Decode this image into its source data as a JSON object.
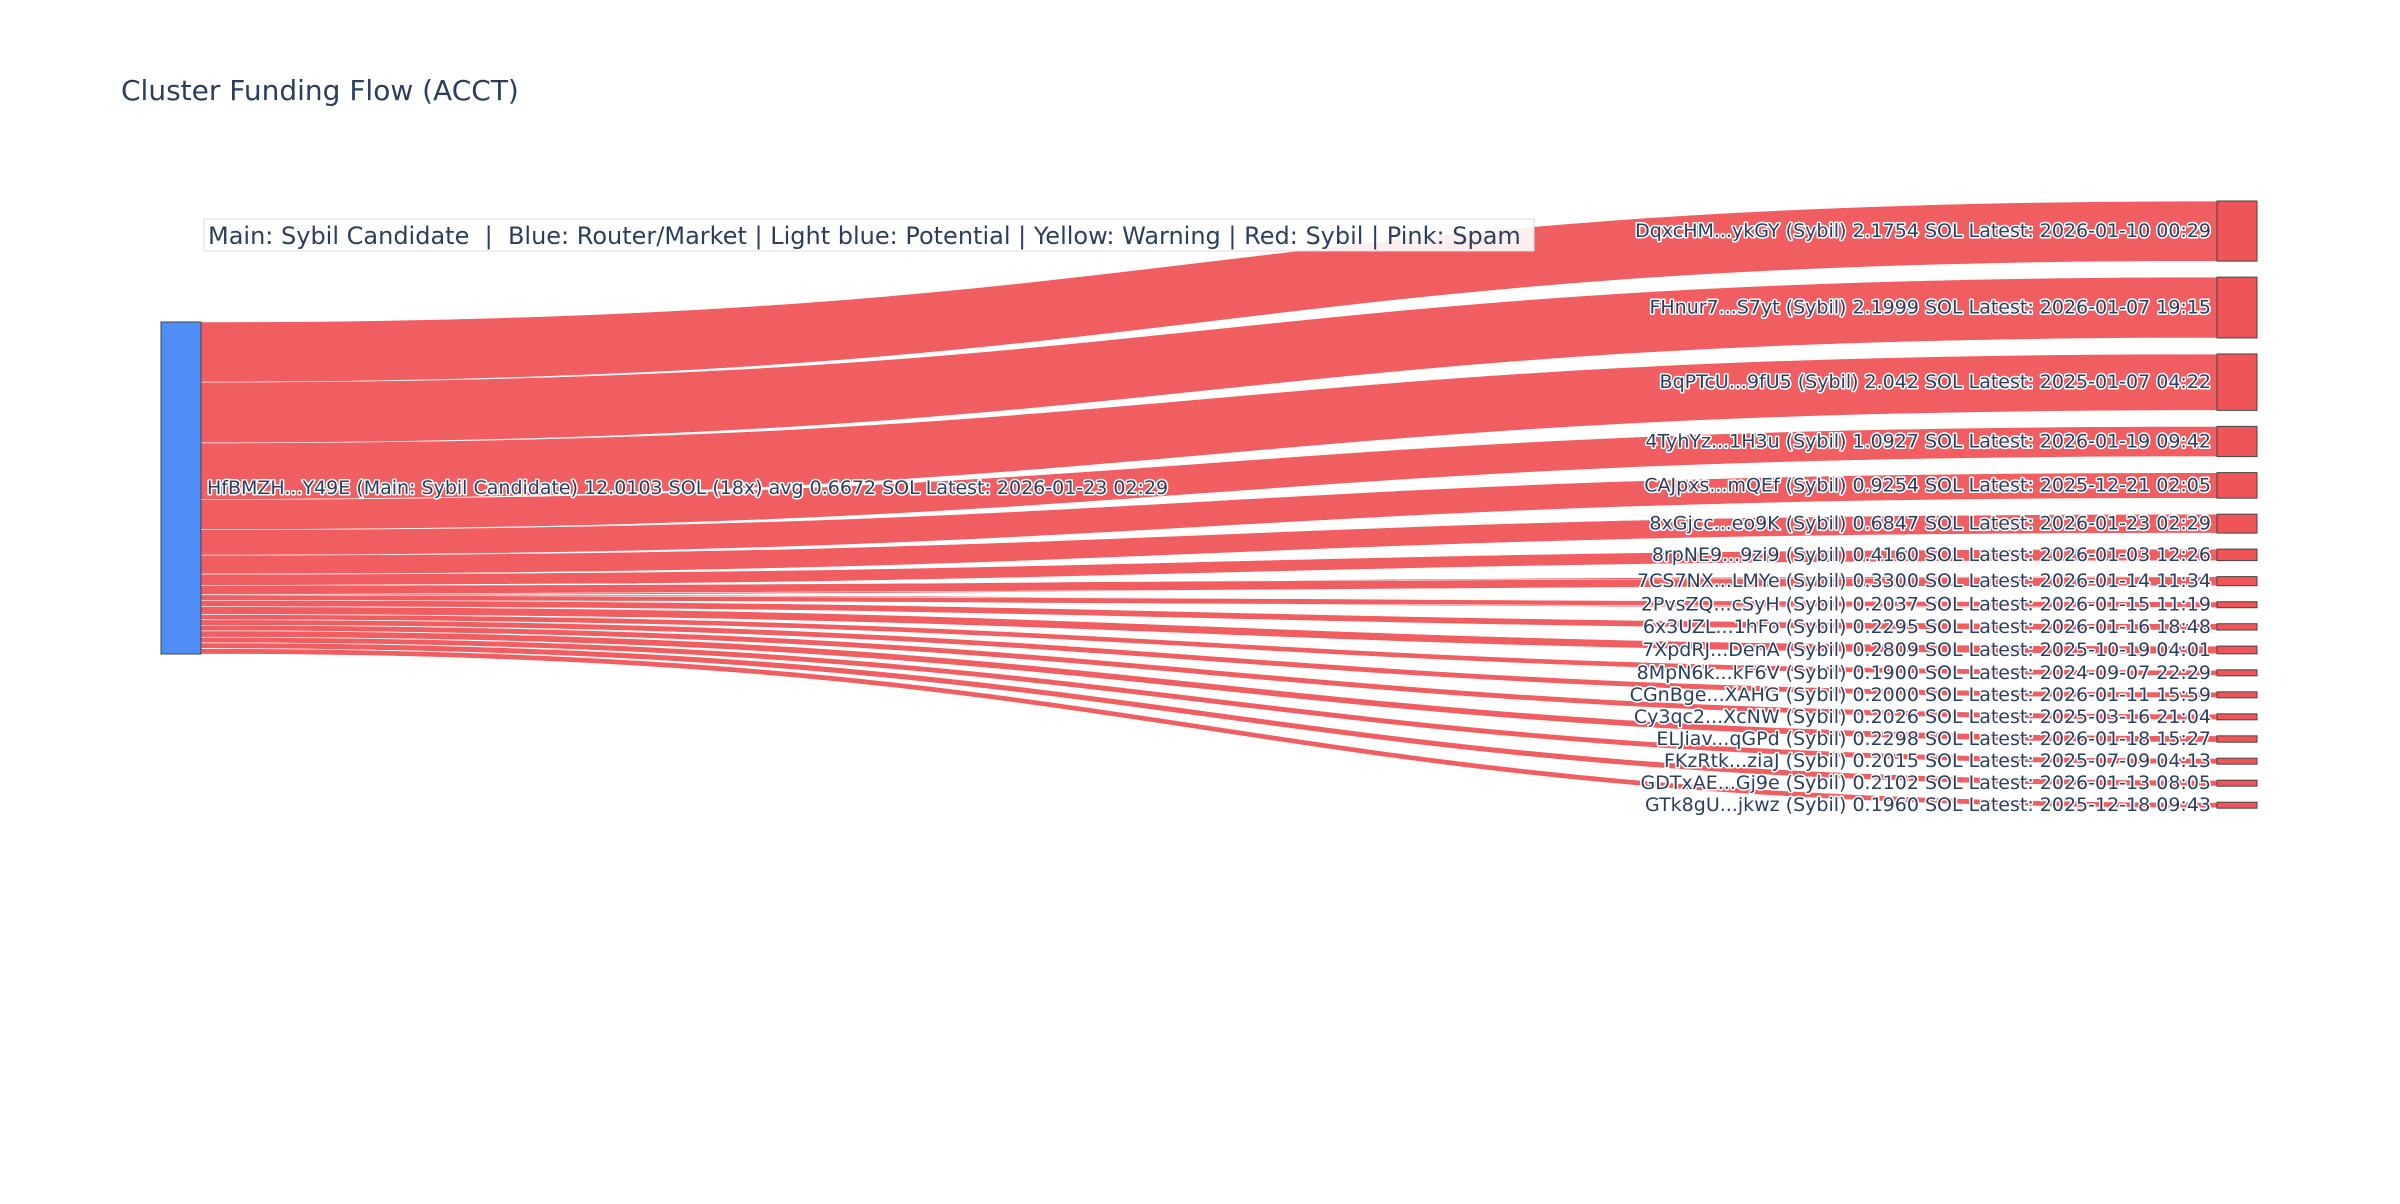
{
  "chart_data": {
    "type": "sankey",
    "title": "Cluster Funding Flow (ACCT)",
    "annotation": "Main: Sybil Candidate  |  Blue: Router/Market | Light blue: Potential | Yellow: Warning | Red: Sybil | Pink: Spam",
    "source": {
      "label": "HfBMZH...Y49E (Main: Sybil Candidate) 12.0103 SOL (18x) avg 0.6672 SOL Latest: 2026-01-23 02:29",
      "color": "#4f8ef7"
    },
    "link_color": "#ef5558",
    "target_color": "#ef5558",
    "targets": [
      {
        "label": "DqxcHM...ykGY (Sybil) 2.1754 SOL Latest: 2026-01-10 00:29",
        "value": 2.1754
      },
      {
        "label": "FHnur7...S7yt (Sybil) 2.1999 SOL Latest: 2026-01-07 19:15",
        "value": 2.1999
      },
      {
        "label": "BqPTcU...9fU5 (Sybil) 2.042 SOL Latest: 2025-01-07 04:22",
        "value": 2.042
      },
      {
        "label": "4TyhYz...1H3u (Sybil) 1.0927 SOL Latest: 2026-01-19 09:42",
        "value": 1.0927
      },
      {
        "label": "CAJpxs...mQEf (Sybil) 0.9254 SOL Latest: 2025-12-21 02:05",
        "value": 0.9254
      },
      {
        "label": "8xGjcc...eo9K (Sybil) 0.6847 SOL Latest: 2026-01-23 02:29",
        "value": 0.6847
      },
      {
        "label": "8rpNE9...9zi9 (Sybil) 0.4160 SOL Latest: 2026-01-03 12:26",
        "value": 0.416
      },
      {
        "label": "7CS7NX...LMYe (Sybil) 0.3300 SOL Latest: 2026-01-14 11:34",
        "value": 0.33
      },
      {
        "label": "2PvsZQ...cSyH (Sybil) 0.2037 SOL Latest: 2026-01-15 11:19",
        "value": 0.2037
      },
      {
        "label": "6x3UZL...1hFo (Sybil) 0.2295 SOL Latest: 2026-01-16 18:48",
        "value": 0.2295
      },
      {
        "label": "7XpdRJ...DenA (Sybil) 0.2809 SOL Latest: 2025-10-19 04:01",
        "value": 0.2809
      },
      {
        "label": "8MpN6k...kF6V (Sybil) 0.1900 SOL Latest: 2024-09-07 22:29",
        "value": 0.19
      },
      {
        "label": "CGnBge...XAHG (Sybil) 0.2000 SOL Latest: 2026-01-11 15:59",
        "value": 0.2
      },
      {
        "label": "Cy3qc2...XcNW (Sybil) 0.2026 SOL Latest: 2025-03-16 21:04",
        "value": 0.2026
      },
      {
        "label": "ELJiav...qGPd (Sybil) 0.2298 SOL Latest: 2026-01-18 15:27",
        "value": 0.2298
      },
      {
        "label": "FKzRtk...ziaJ (Sybil) 0.2015 SOL Latest: 2025-07-09 04:13",
        "value": 0.2015
      },
      {
        "label": "GDTxAE...Gj9e (Sybil) 0.2102 SOL Latest: 2026-01-13 08:05",
        "value": 0.2102
      },
      {
        "label": "GTk8gU...jkwz (Sybil) 0.1960 SOL Latest: 2025-12-18 09:43",
        "value": 0.196
      }
    ]
  }
}
